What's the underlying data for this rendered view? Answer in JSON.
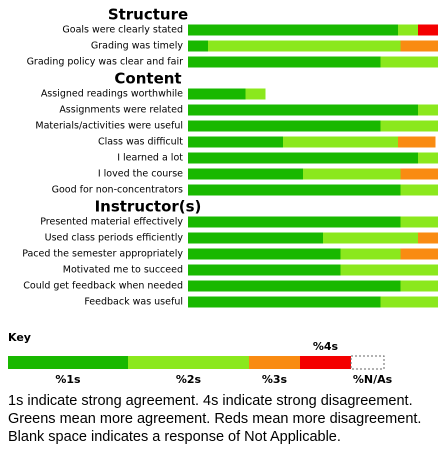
{
  "chart_data": {
    "type": "stacked-bar",
    "xlim": [
      0,
      100
    ],
    "colors": [
      "#19b800",
      "#8be81d",
      "#f98b12",
      "#f40000"
    ],
    "sections": [
      {
        "title": "Structure",
        "rows": [
          {
            "label": "Goals were clearly stated",
            "values": [
              84,
              8,
              0,
              8
            ]
          },
          {
            "label": "Grading was timely",
            "values": [
              8,
              77,
              15,
              0
            ]
          },
          {
            "label": "Grading policy was clear and fair",
            "values": [
              77,
              23,
              0,
              0
            ]
          }
        ]
      },
      {
        "title": "Content",
        "rows": [
          {
            "label": "Assigned readings worthwhile",
            "values": [
              23,
              8,
              0,
              0
            ]
          },
          {
            "label": "Assignments were related",
            "values": [
              92,
              8,
              0,
              0
            ]
          },
          {
            "label": "Materials/activities were useful",
            "values": [
              77,
              23,
              0,
              0
            ]
          },
          {
            "label": "Class was difficult",
            "values": [
              38,
              46,
              15,
              0
            ]
          },
          {
            "label": "I learned a lot",
            "values": [
              92,
              8,
              0,
              0
            ]
          },
          {
            "label": "I loved the course",
            "values": [
              46,
              39,
              15,
              0
            ]
          },
          {
            "label": "Good for non-concentrators",
            "values": [
              85,
              15,
              0,
              0
            ]
          }
        ]
      },
      {
        "title": "Instructor(s)",
        "rows": [
          {
            "label": "Presented material effectively",
            "values": [
              85,
              15,
              0,
              0
            ]
          },
          {
            "label": "Used class periods efficiently",
            "values": [
              54,
              38,
              8,
              0
            ]
          },
          {
            "label": "Paced the semester appropriately",
            "values": [
              61,
              24,
              15,
              0
            ]
          },
          {
            "label": "Motivated me to succeed",
            "values": [
              61,
              39,
              0,
              0
            ]
          },
          {
            "label": "Could get feedback when needed",
            "values": [
              85,
              15,
              0,
              0
            ]
          },
          {
            "label": "Feedback was useful",
            "values": [
              77,
              23,
              0,
              0
            ]
          }
        ]
      }
    ],
    "key": {
      "title": "Key",
      "labels": [
        "%1s",
        "%2s",
        "%3s",
        "%4s",
        "%N/As"
      ]
    },
    "caption": "1s indicate strong agreement. 4s indicate strong disagreement. Greens mean more agreement. Reds mean more disagreement. Blank space indicates a response of Not Applicable."
  }
}
